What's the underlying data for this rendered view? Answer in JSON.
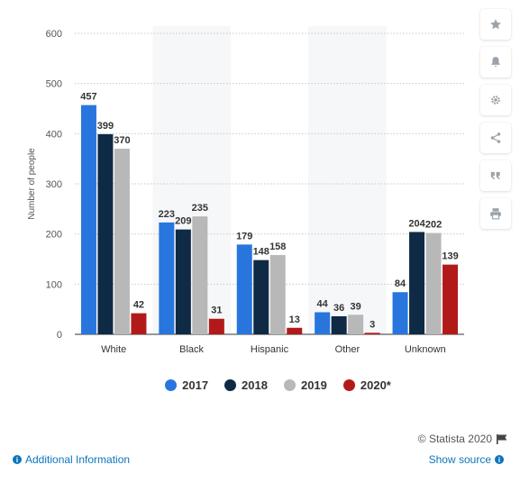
{
  "chart_data": {
    "type": "bar",
    "categories": [
      "White",
      "Black",
      "Hispanic",
      "Other",
      "Unknown"
    ],
    "series": [
      {
        "name": "2017",
        "values": [
          457,
          223,
          179,
          44,
          84
        ]
      },
      {
        "name": "2018",
        "values": [
          399,
          209,
          148,
          36,
          204
        ]
      },
      {
        "name": "2019",
        "values": [
          370,
          235,
          158,
          39,
          202
        ]
      },
      {
        "name": "2020*",
        "values": [
          42,
          31,
          13,
          3,
          139
        ]
      }
    ],
    "ylabel": "Number of people",
    "ylim": [
      0,
      600
    ],
    "yticks": [
      0,
      100,
      200,
      300,
      400,
      500,
      600
    ],
    "grid": true,
    "legend_position": "bottom",
    "colors": [
      "#2876dd",
      "#0f2a44",
      "#b8b8b8",
      "#b21a1a"
    ]
  },
  "credit": "© Statista 2020",
  "footer": {
    "additional_info": "Additional Information",
    "show_source": "Show source"
  },
  "sidebar_icons": [
    "star-icon",
    "bell-icon",
    "gear-icon",
    "share-icon",
    "quote-icon",
    "print-icon"
  ]
}
